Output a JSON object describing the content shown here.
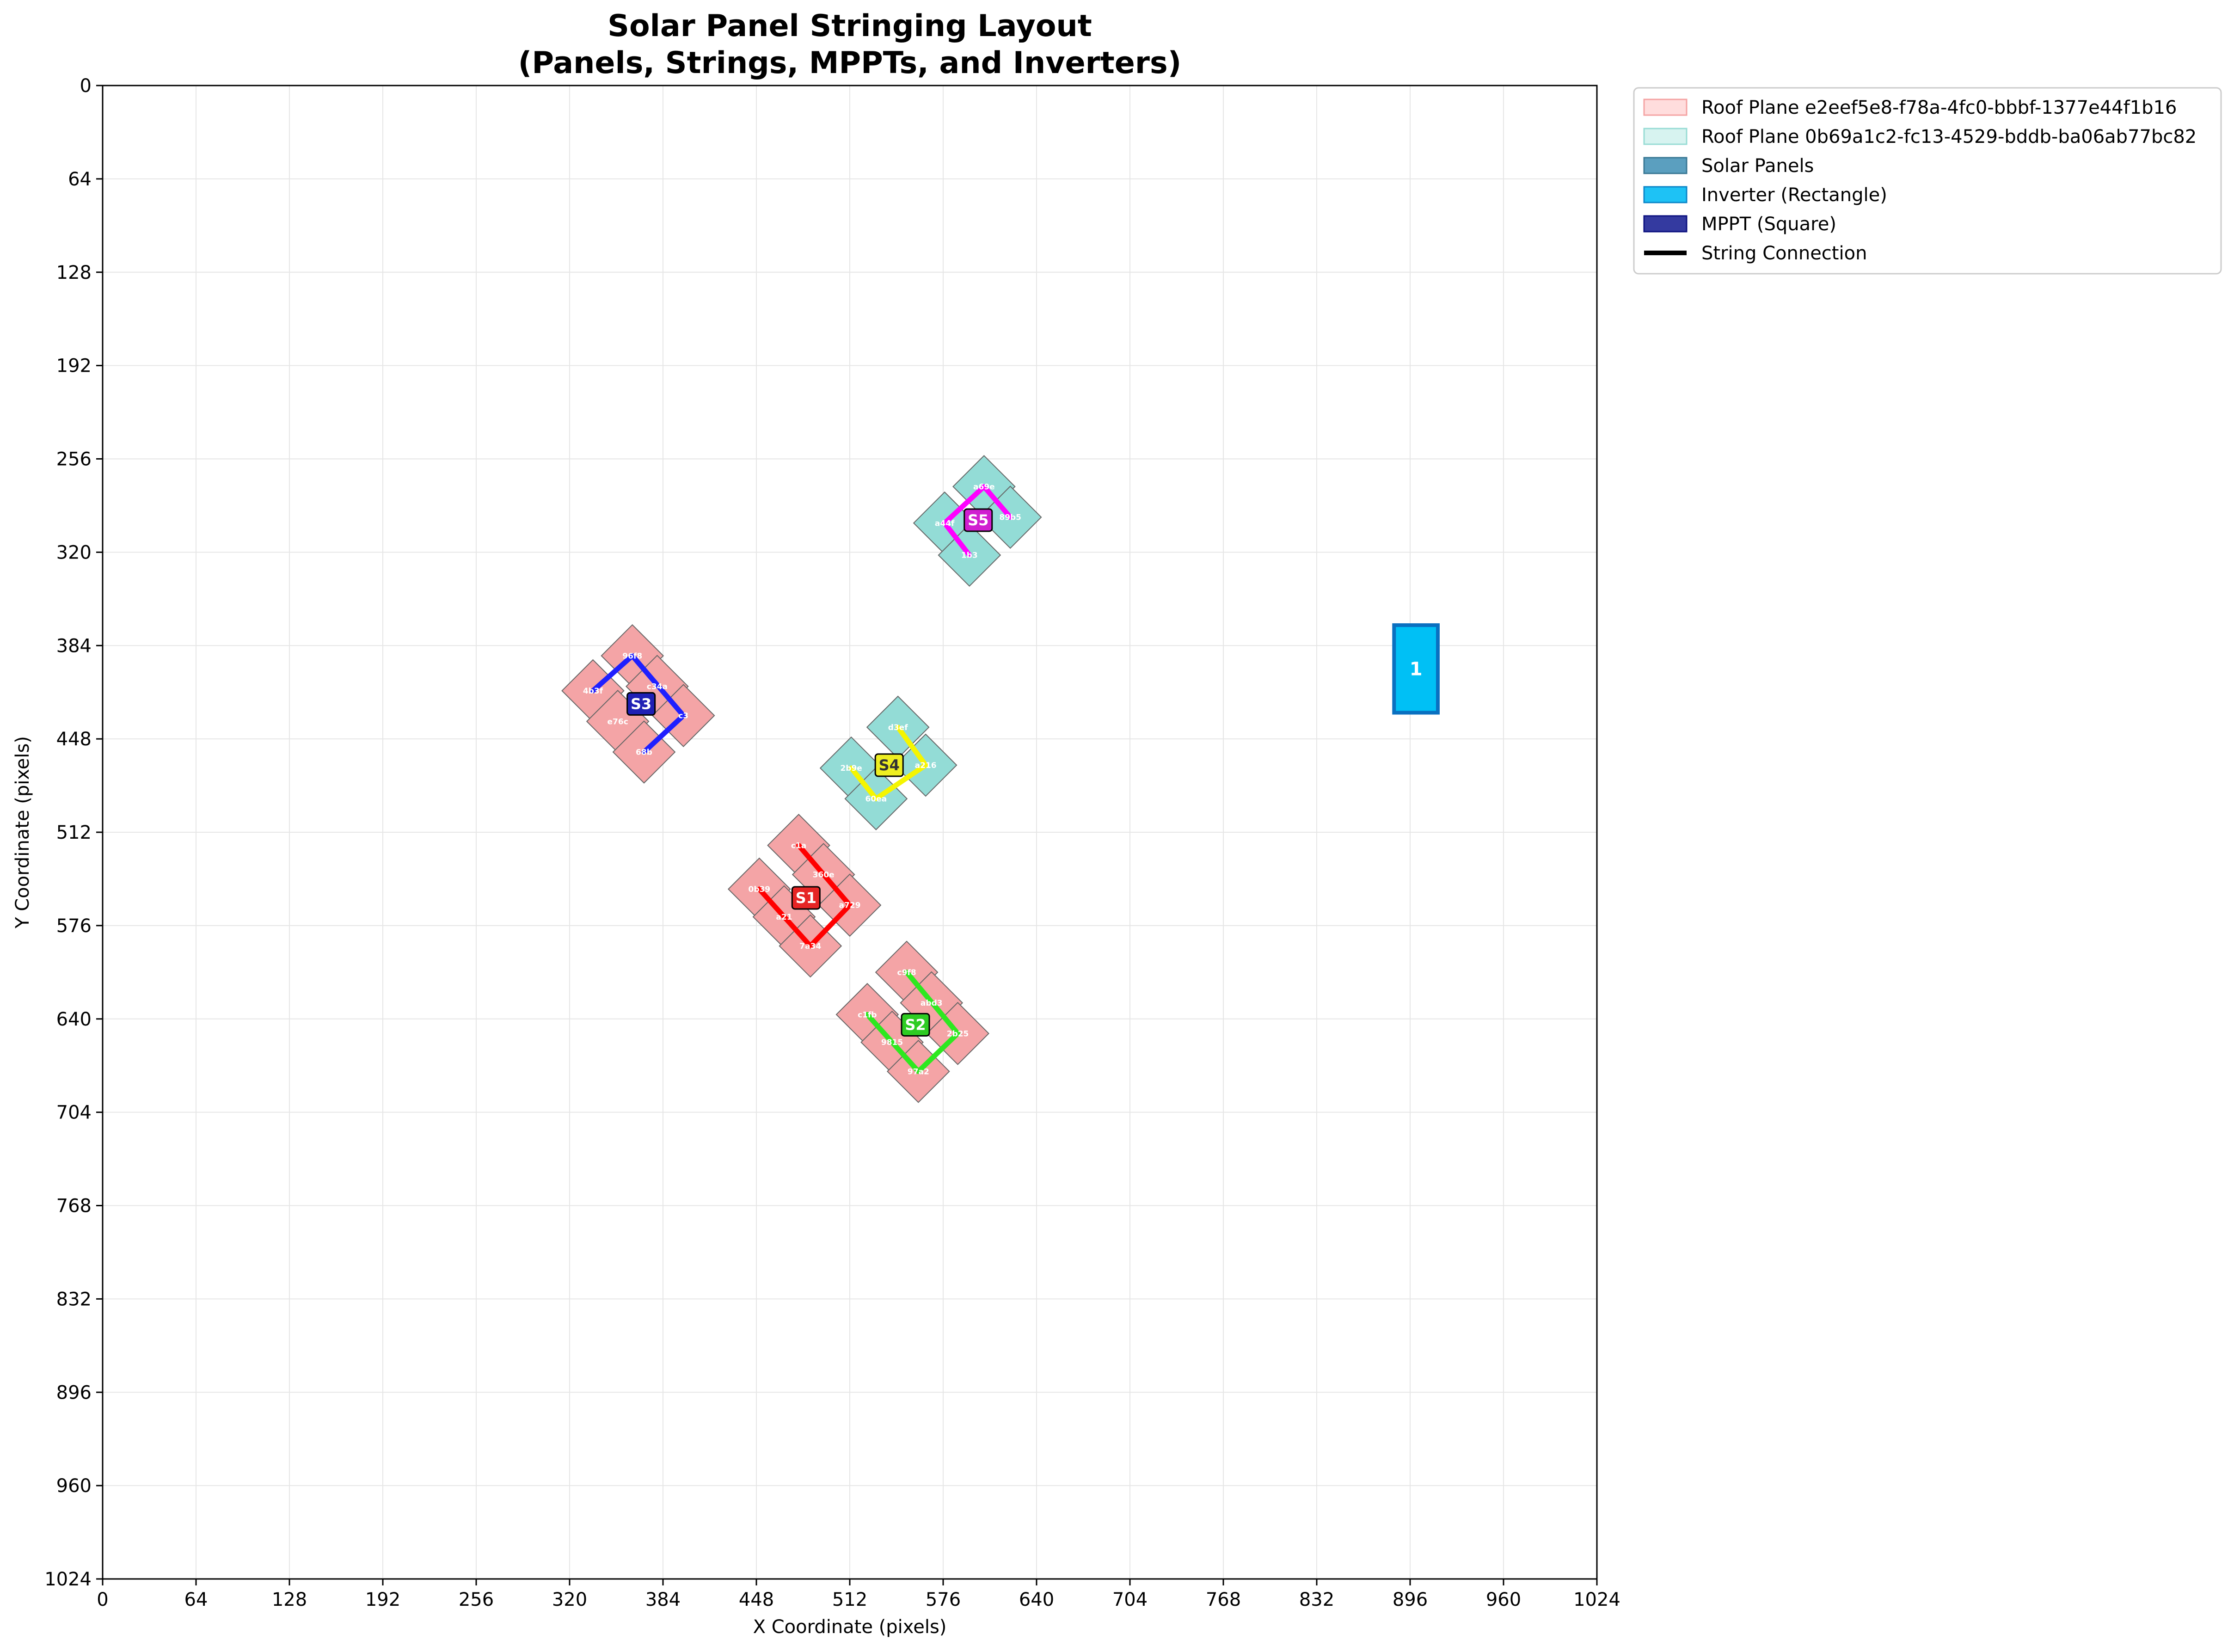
{
  "chart_data": {
    "type": "scatter",
    "title": "Solar Panel Stringing Layout",
    "subtitle": "(Panels, Strings, MPPTs, and Inverters)",
    "xlabel": "X Coordinate (pixels)",
    "ylabel": "Y Coordinate (pixels)",
    "xlim": [
      0,
      1024
    ],
    "ylim": [
      1024,
      0
    ],
    "y_inverted": true,
    "grid": true,
    "x_ticks": [
      0,
      64,
      128,
      192,
      256,
      320,
      384,
      448,
      512,
      576,
      640,
      704,
      768,
      832,
      896,
      960,
      1024
    ],
    "y_ticks": [
      0,
      64,
      128,
      192,
      256,
      320,
      384,
      448,
      512,
      576,
      640,
      704,
      768,
      832,
      896,
      960,
      1024
    ],
    "x_tick_labels": [
      "0",
      "64",
      "128",
      "192",
      "256",
      "320",
      "384",
      "448",
      "512",
      "576",
      "640",
      "704",
      "768",
      "832",
      "896",
      "960",
      "1024"
    ],
    "y_tick_labels": [
      "0",
      "64",
      "128",
      "192",
      "256",
      "320",
      "384",
      "448",
      "512",
      "576",
      "640",
      "704",
      "768",
      "832",
      "896",
      "960",
      "1024"
    ],
    "legend_position": "outside-top-right",
    "legend": [
      {
        "label": "Roof Plane e2eef5e8-f78a-4fc0-bbbf-1377e44f1b16",
        "kind": "patch",
        "color": "#ffdddd",
        "edge": "#f4a3a3"
      },
      {
        "label": "Roof Plane 0b69a1c2-fc13-4529-bddb-ba06ab77bc82",
        "kind": "patch",
        "color": "#d7f3f0",
        "edge": "#98dcd5"
      },
      {
        "label": "Solar Panels",
        "kind": "patch",
        "color": "#5b9fbf",
        "edge": "#3a7895"
      },
      {
        "label": "Inverter (Rectangle)",
        "kind": "patch",
        "color": "#1ec2f5",
        "edge": "#0b86c8"
      },
      {
        "label": "MPPT (Square)",
        "kind": "patch",
        "color": "#343aa0",
        "edge": "#0d1180"
      },
      {
        "label": "String Connection",
        "kind": "line",
        "color": "#000000"
      }
    ],
    "roof_colors": {
      "roof1": "#f4a4a6",
      "roof2": "#93dcd6"
    },
    "panel_size": 30,
    "panel_angle_deg": -45,
    "groups": [
      {
        "name": "S1",
        "roof": "roof1",
        "string_color": "#ff0000",
        "mppt_fill": "#e62525",
        "mppt_text_color": "#ffffff",
        "mppt": [
          482,
          557
        ],
        "panels": [
          {
            "id": "0b39",
            "x": 450,
            "y": 551
          },
          {
            "id": "c1a",
            "x": 477,
            "y": 521
          },
          {
            "id": "a21",
            "x": 467,
            "y": 570
          },
          {
            "id": "360e",
            "x": 494,
            "y": 541
          },
          {
            "id": "7a34",
            "x": 485,
            "y": 590
          },
          {
            "id": "a729",
            "x": 512,
            "y": 562
          }
        ],
        "string_path": [
          [
            477,
            521
          ],
          [
            512,
            562
          ],
          [
            485,
            590
          ],
          [
            450,
            551
          ]
        ]
      },
      {
        "name": "S2",
        "roof": "roof1",
        "string_color": "#2ee820",
        "mppt_fill": "#2ecc23",
        "mppt_text_color": "#ffffff",
        "mppt": [
          557,
          644
        ],
        "panels": [
          {
            "id": "c1fb",
            "x": 524,
            "y": 637
          },
          {
            "id": "c9f8",
            "x": 551,
            "y": 608
          },
          {
            "id": "9815",
            "x": 541,
            "y": 656
          },
          {
            "id": "abd3",
            "x": 568,
            "y": 629
          },
          {
            "id": "97a2",
            "x": 559,
            "y": 676
          },
          {
            "id": "2b25",
            "x": 586,
            "y": 650
          }
        ],
        "string_path": [
          [
            551,
            608
          ],
          [
            586,
            650
          ],
          [
            559,
            676
          ],
          [
            524,
            637
          ]
        ]
      },
      {
        "name": "S3",
        "roof": "roof1",
        "string_color": "#1f1fff",
        "mppt_fill": "#2020b5",
        "mppt_text_color": "#ffffff",
        "mppt": [
          369,
          424
        ],
        "panels": [
          {
            "id": "4b3f",
            "x": 336,
            "y": 415
          },
          {
            "id": "96f8",
            "x": 363,
            "y": 391
          },
          {
            "id": "e76c",
            "x": 353,
            "y": 436
          },
          {
            "id": "c34a",
            "x": 380,
            "y": 412
          },
          {
            "id": "68b",
            "x": 371,
            "y": 457
          },
          {
            "id": "c3",
            "x": 398,
            "y": 432
          }
        ],
        "string_path": [
          [
            336,
            415
          ],
          [
            363,
            391
          ],
          [
            398,
            432
          ],
          [
            371,
            457
          ]
        ]
      },
      {
        "name": "S4",
        "roof": "roof2",
        "string_color": "#f5f500",
        "mppt_fill": "#eeee22",
        "mppt_text_color": "#333333",
        "mppt": [
          539,
          466
        ],
        "panels": [
          {
            "id": "2b9e",
            "x": 513,
            "y": 468
          },
          {
            "id": "d3ef",
            "x": 545,
            "y": 440
          },
          {
            "id": "60ea",
            "x": 530,
            "y": 489
          },
          {
            "id": "a216",
            "x": 564,
            "y": 466
          }
        ],
        "string_path": [
          [
            545,
            440
          ],
          [
            564,
            466
          ],
          [
            530,
            489
          ],
          [
            513,
            468
          ]
        ]
      },
      {
        "name": "S5",
        "roof": "roof2",
        "string_color": "#ff00ff",
        "mppt_fill": "#d01fd0",
        "mppt_text_color": "#ffffff",
        "mppt": [
          600,
          298
        ],
        "panels": [
          {
            "id": "a44f",
            "x": 577,
            "y": 300
          },
          {
            "id": "a69e",
            "x": 604,
            "y": 275
          },
          {
            "id": "1b3",
            "x": 594,
            "y": 322
          },
          {
            "id": "89b5",
            "x": 622,
            "y": 296
          }
        ],
        "string_path": [
          [
            622,
            296
          ],
          [
            604,
            275
          ],
          [
            577,
            300
          ],
          [
            594,
            322
          ]
        ]
      }
    ],
    "inverter": {
      "label": "1",
      "x": 885,
      "y": 370,
      "width": 30,
      "height": 60,
      "fill": "#00c0f5",
      "edge": "#0a70c0"
    }
  }
}
